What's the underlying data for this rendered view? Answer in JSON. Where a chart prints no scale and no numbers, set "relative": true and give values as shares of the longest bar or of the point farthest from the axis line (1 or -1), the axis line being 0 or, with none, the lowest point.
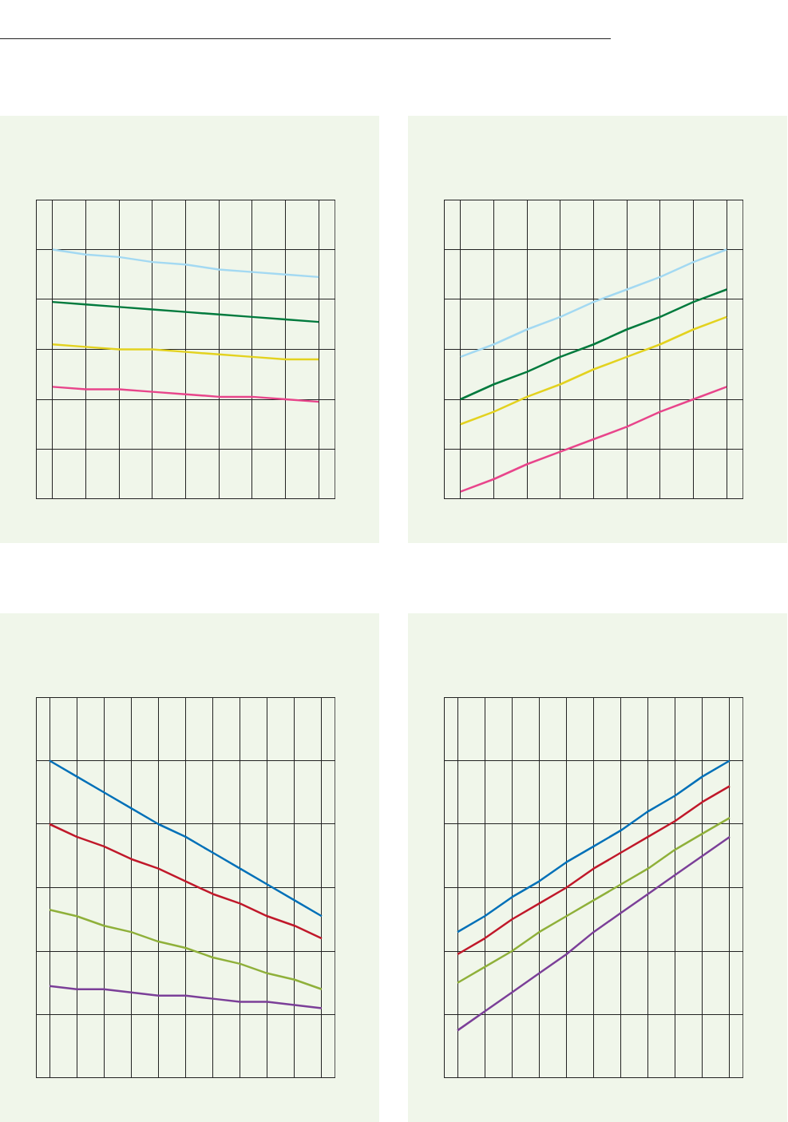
{
  "chart_data": [
    {
      "type": "line",
      "relative": true,
      "grid": true,
      "categories": [
        null,
        null,
        null,
        null,
        null,
        null,
        null,
        null,
        null
      ],
      "series": [
        {
          "color": "#a3d9f2",
          "values": [
            1,
            0.98,
            0.97,
            0.95,
            0.94,
            0.92,
            0.91,
            0.9,
            0.89
          ]
        },
        {
          "color": "#007a3d",
          "values": [
            0.79,
            0.78,
            0.77,
            0.76,
            0.75,
            0.74,
            0.73,
            0.72,
            0.71
          ]
        },
        {
          "color": "#e3d21f",
          "values": [
            0.62,
            0.61,
            0.6,
            0.6,
            0.59,
            0.58,
            0.57,
            0.56,
            0.56
          ]
        },
        {
          "color": "#e8458b",
          "values": [
            0.45,
            0.44,
            0.44,
            0.43,
            0.42,
            0.41,
            0.41,
            0.4,
            0.39
          ]
        }
      ]
    },
    {
      "type": "line",
      "relative": true,
      "grid": true,
      "categories": [
        null,
        null,
        null,
        null,
        null,
        null,
        null,
        null,
        null
      ],
      "series": [
        {
          "color": "#a3d9f2",
          "values": [
            0.57,
            0.62,
            0.68,
            0.73,
            0.79,
            0.84,
            0.89,
            0.95,
            1
          ]
        },
        {
          "color": "#007a3d",
          "values": [
            0.4,
            0.46,
            0.51,
            0.57,
            0.62,
            0.68,
            0.73,
            0.79,
            0.84
          ]
        },
        {
          "color": "#e3d21f",
          "values": [
            0.3,
            0.35,
            0.41,
            0.46,
            0.52,
            0.57,
            0.62,
            0.68,
            0.73
          ]
        },
        {
          "color": "#e8458b",
          "values": [
            0.03,
            0.08,
            0.14,
            0.19,
            0.24,
            0.29,
            0.35,
            0.4,
            0.45
          ]
        }
      ]
    },
    {
      "type": "line",
      "relative": true,
      "grid": true,
      "categories": [
        null,
        null,
        null,
        null,
        null,
        null,
        null,
        null,
        null,
        null,
        null
      ],
      "series": [
        {
          "color": "#0070b8",
          "values": [
            1,
            0.95,
            0.9,
            0.85,
            0.8,
            0.76,
            0.71,
            0.66,
            0.61,
            0.56,
            0.51
          ]
        },
        {
          "color": "#c0182a",
          "values": [
            0.8,
            0.76,
            0.73,
            0.69,
            0.66,
            0.62,
            0.58,
            0.55,
            0.51,
            0.48,
            0.44
          ]
        },
        {
          "color": "#8fb03a",
          "values": [
            0.53,
            0.51,
            0.48,
            0.46,
            0.43,
            0.41,
            0.38,
            0.36,
            0.33,
            0.31,
            0.28
          ]
        },
        {
          "color": "#7b3f98",
          "values": [
            0.29,
            0.28,
            0.28,
            0.27,
            0.26,
            0.26,
            0.25,
            0.24,
            0.24,
            0.23,
            0.22
          ]
        }
      ]
    },
    {
      "type": "line",
      "relative": true,
      "grid": true,
      "categories": [
        null,
        null,
        null,
        null,
        null,
        null,
        null,
        null,
        null,
        null,
        null
      ],
      "series": [
        {
          "color": "#0070b8",
          "values": [
            0.46,
            0.51,
            0.57,
            0.62,
            0.68,
            0.73,
            0.78,
            0.84,
            0.89,
            0.95,
            1
          ]
        },
        {
          "color": "#c0182a",
          "values": [
            0.39,
            0.44,
            0.5,
            0.55,
            0.6,
            0.66,
            0.71,
            0.76,
            0.81,
            0.87,
            0.92
          ]
        },
        {
          "color": "#8fb03a",
          "values": [
            0.3,
            0.35,
            0.4,
            0.46,
            0.51,
            0.56,
            0.61,
            0.66,
            0.72,
            0.77,
            0.82
          ]
        },
        {
          "color": "#7b3f98",
          "values": [
            0.15,
            0.21,
            0.27,
            0.33,
            0.39,
            0.46,
            0.52,
            0.58,
            0.64,
            0.7,
            0.76
          ]
        }
      ]
    }
  ]
}
